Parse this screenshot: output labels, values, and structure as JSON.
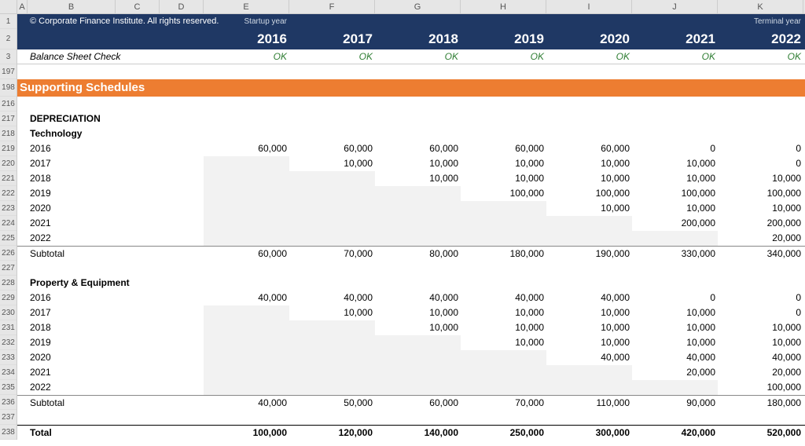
{
  "columns": [
    "A",
    "B",
    "C",
    "D",
    "E",
    "F",
    "G",
    "H",
    "I",
    "J",
    "K"
  ],
  "rowNumbers": [
    "1",
    "2",
    "3",
    "197",
    "198",
    "216",
    "217",
    "218",
    "219",
    "220",
    "221",
    "222",
    "223",
    "224",
    "225",
    "226",
    "227",
    "228",
    "229",
    "230",
    "231",
    "232",
    "233",
    "234",
    "235",
    "236",
    "237",
    "238"
  ],
  "copyright": "© Corporate Finance Institute. All rights reserved.",
  "startup_label": "Startup year",
  "terminal_label": "Terminal year",
  "years": [
    "2016",
    "2017",
    "2018",
    "2019",
    "2020",
    "2021",
    "2022"
  ],
  "check_label": "Balance Sheet Check",
  "ok": "OK",
  "section_title": "Supporting Schedules",
  "deprec_title": "DEPRECIATION",
  "tech_title": "Technology",
  "ppe_title": "Property & Equipment",
  "subtotal_label": "Subtotal",
  "total_label": "Total",
  "tech": {
    "y2016": {
      "lbl": "2016",
      "v": [
        "60,000",
        "60,000",
        "60,000",
        "60,000",
        "60,000",
        "0",
        "0"
      ]
    },
    "y2017": {
      "lbl": "2017",
      "v": [
        "",
        "10,000",
        "10,000",
        "10,000",
        "10,000",
        "10,000",
        "0"
      ]
    },
    "y2018": {
      "lbl": "2018",
      "v": [
        "",
        "",
        "10,000",
        "10,000",
        "10,000",
        "10,000",
        "10,000"
      ]
    },
    "y2019": {
      "lbl": "2019",
      "v": [
        "",
        "",
        "",
        "100,000",
        "100,000",
        "100,000",
        "100,000"
      ]
    },
    "y2020": {
      "lbl": "2020",
      "v": [
        "",
        "",
        "",
        "",
        "10,000",
        "10,000",
        "10,000"
      ]
    },
    "y2021": {
      "lbl": "2021",
      "v": [
        "",
        "",
        "",
        "",
        "",
        "200,000",
        "200,000"
      ]
    },
    "y2022": {
      "lbl": "2022",
      "v": [
        "",
        "",
        "",
        "",
        "",
        "",
        "20,000"
      ]
    },
    "sub": [
      "60,000",
      "70,000",
      "80,000",
      "180,000",
      "190,000",
      "330,000",
      "340,000"
    ]
  },
  "ppe": {
    "y2016": {
      "lbl": "2016",
      "v": [
        "40,000",
        "40,000",
        "40,000",
        "40,000",
        "40,000",
        "0",
        "0"
      ]
    },
    "y2017": {
      "lbl": "2017",
      "v": [
        "",
        "10,000",
        "10,000",
        "10,000",
        "10,000",
        "10,000",
        "0"
      ]
    },
    "y2018": {
      "lbl": "2018",
      "v": [
        "",
        "",
        "10,000",
        "10,000",
        "10,000",
        "10,000",
        "10,000"
      ]
    },
    "y2019": {
      "lbl": "2019",
      "v": [
        "",
        "",
        "",
        "10,000",
        "10,000",
        "10,000",
        "10,000"
      ]
    },
    "y2020": {
      "lbl": "2020",
      "v": [
        "",
        "",
        "",
        "",
        "40,000",
        "40,000",
        "40,000"
      ]
    },
    "y2021": {
      "lbl": "2021",
      "v": [
        "",
        "",
        "",
        "",
        "",
        "20,000",
        "20,000"
      ]
    },
    "y2022": {
      "lbl": "2022",
      "v": [
        "",
        "",
        "",
        "",
        "",
        "",
        "100,000"
      ]
    },
    "sub": [
      "40,000",
      "50,000",
      "60,000",
      "70,000",
      "110,000",
      "90,000",
      "180,000"
    ]
  },
  "totals": [
    "100,000",
    "120,000",
    "140,000",
    "250,000",
    "300,000",
    "420,000",
    "520,000"
  ],
  "shading": {
    "tech": [
      0,
      1,
      2,
      3,
      4,
      5,
      6
    ],
    "ppe": [
      0,
      1,
      2,
      3,
      4,
      5,
      6
    ]
  }
}
